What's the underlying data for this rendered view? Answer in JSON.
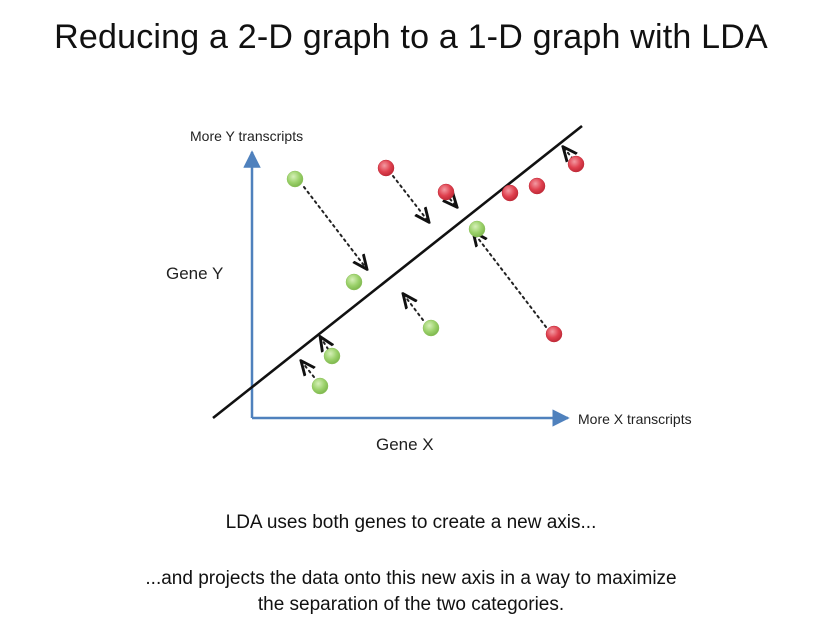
{
  "title": "Reducing a 2-D graph to a 1-D graph with LDA",
  "axes": {
    "y_top_label": "More Y transcripts",
    "y_label": "Gene Y",
    "x_right_label": "More X transcripts",
    "x_label": "Gene X"
  },
  "captions": {
    "line1": "LDA uses both genes to create a new axis...",
    "line2a": "...and projects the data onto this new axis in a way to maximize",
    "line2b": "the separation of the two categories."
  },
  "colors": {
    "axis": "#4f81bd",
    "lda_line": "#111111",
    "green_point": "#9bd16a",
    "red_point": "#e0414f"
  }
}
